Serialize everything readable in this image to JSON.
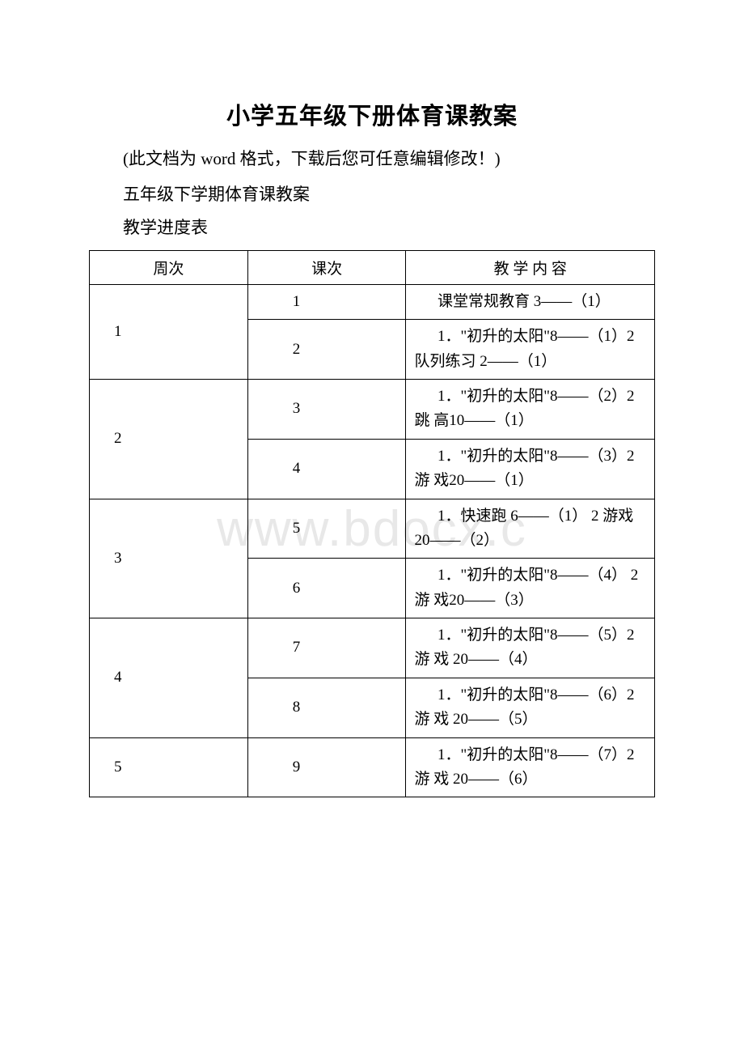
{
  "title": "小学五年级下册体育课教案",
  "subtitle": "(此文档为 word 格式，下载后您可任意编辑修改！)",
  "section1": "五年级下学期体育课教案",
  "section2": "教学进度表",
  "watermark": "www.bdocx.c",
  "table": {
    "headers": [
      "周次",
      "课次",
      "教 学 内 容"
    ],
    "rows": [
      {
        "week": "1",
        "lessons": [
          {
            "num": "1",
            "content": "课堂常规教育 3——（1）"
          },
          {
            "num": "2",
            "content": "1．\"初升的太阳\"8——（1）2 队列练习 2——（1）"
          }
        ]
      },
      {
        "week": "2",
        "lessons": [
          {
            "num": "3",
            "content": "1．\"初升的太阳\"8——（2）2 跳  高10——（1）"
          },
          {
            "num": "4",
            "content": "1．\"初升的太阳\"8——（3）2 游 戏20——（1）"
          }
        ]
      },
      {
        "week": "3",
        "lessons": [
          {
            "num": "5",
            "content": "1．快速跑 6——（1） 2 游戏 20——（2）"
          },
          {
            "num": "6",
            "content": "1．\"初升的太阳\"8——（4） 2 游 戏20——（3）"
          }
        ]
      },
      {
        "week": "4",
        "lessons": [
          {
            "num": "7",
            "content": "1．\"初升的太阳\"8——（5）2 游 戏 20——（4）"
          },
          {
            "num": "8",
            "content": "1．\"初升的太阳\"8——（6）2 游 戏 20——（5）"
          }
        ]
      },
      {
        "week": "5",
        "lessons": [
          {
            "num": "9",
            "content": "1．\"初升的太阳\"8——（7）2 游 戏 20——（6）"
          }
        ]
      }
    ]
  }
}
